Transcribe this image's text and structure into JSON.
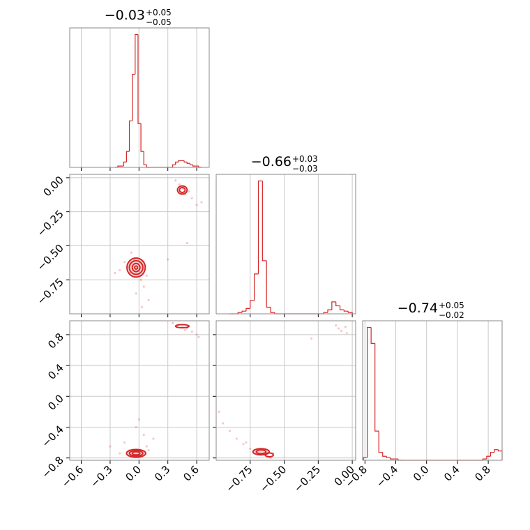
{
  "chart_data": [
    {
      "type": "hist",
      "title": "−0.03",
      "title_upper": "+0.05",
      "title_lower": "−0.05",
      "color": "#d62728",
      "grid": true,
      "bins": [
        -0.25,
        -0.22,
        -0.19,
        -0.16,
        -0.13,
        -0.1,
        -0.07,
        -0.04,
        -0.01,
        0.02,
        0.05,
        0.08,
        0.11,
        0.14,
        0.17,
        0.2,
        0.23,
        0.26,
        0.29,
        0.32,
        0.35,
        0.38,
        0.41,
        0.44,
        0.47,
        0.5,
        0.53,
        0.56,
        0.59,
        0.62,
        0.65
      ],
      "counts": [
        0,
        1,
        1,
        4,
        12,
        35,
        70,
        100,
        33,
        12,
        2,
        0,
        0,
        0,
        0,
        0,
        0,
        0,
        0,
        0,
        2,
        4,
        5,
        5,
        4,
        3,
        2,
        1,
        1,
        0
      ],
      "xlim": [
        -0.72,
        0.73
      ],
      "xticks": [
        -0.6,
        -0.3,
        0,
        0.3,
        0.6
      ]
    },
    {
      "type": "hist",
      "title": "−0.66",
      "title_upper": "+0.03",
      "title_lower": "−0.03",
      "color": "#d62728",
      "grid": true,
      "bins": [
        -0.9,
        -0.87,
        -0.84,
        -0.81,
        -0.78,
        -0.75,
        -0.72,
        -0.69,
        -0.66,
        -0.63,
        -0.6,
        -0.57,
        -0.54,
        -0.51,
        -0.48,
        -0.45,
        -0.42,
        -0.39,
        -0.36,
        -0.33,
        -0.3,
        -0.27,
        -0.24,
        -0.21,
        -0.18,
        -0.15,
        -0.12,
        -0.09,
        -0.06,
        -0.03,
        0.0
      ],
      "counts": [
        0,
        0,
        1,
        2,
        4,
        10,
        30,
        100,
        40,
        5,
        1,
        0,
        0,
        0,
        0,
        0,
        0,
        0,
        0,
        0,
        0,
        0,
        0,
        1,
        3,
        9,
        6,
        3,
        2,
        1
      ],
      "xlim": [
        -1.0,
        0.025
      ],
      "xticks": [
        -0.75,
        -0.5,
        -0.25,
        0
      ]
    },
    {
      "type": "hist",
      "title": "−0.74",
      "title_upper": "+0.05",
      "title_lower": "−0.02",
      "color": "#d62728",
      "grid": true,
      "bins": [
        -0.82,
        -0.77,
        -0.72,
        -0.67,
        -0.62,
        -0.57,
        -0.52,
        -0.47,
        -0.42,
        -0.37,
        -0.32,
        -0.27,
        -0.22,
        -0.17,
        -0.12,
        -0.07,
        -0.02,
        0.03,
        0.08,
        0.13,
        0.18,
        0.23,
        0.28,
        0.33,
        0.38,
        0.43,
        0.48,
        0.53,
        0.58,
        0.63,
        0.68,
        0.73,
        0.78,
        0.83,
        0.88,
        0.93,
        0.98
      ],
      "counts": [
        2,
        100,
        88,
        22,
        6,
        3,
        2,
        1,
        1,
        0,
        0,
        0,
        0,
        0,
        0,
        0,
        0,
        0,
        0,
        0,
        0,
        0,
        0,
        0,
        0,
        0,
        0,
        0,
        0,
        0,
        0,
        1,
        3,
        6,
        8,
        7
      ],
      "xlim": [
        -0.83,
        0.98
      ],
      "xticks": [
        {
          "value": -0.8,
          "label": "−0.8"
        },
        {
          "value": -0.4,
          "label": "−0.4"
        },
        {
          "value": 0,
          "label": "0.0"
        },
        0.4,
        0.8
      ]
    },
    {
      "type": "scatter",
      "color": "#d62728",
      "grid": true,
      "x": [
        -0.05,
        -0.1,
        0.02,
        -0.15,
        0.05,
        -0.2,
        0.08,
        -0.03,
        -0.08,
        0.1,
        -0.25,
        0.03,
        0.42,
        0.48,
        0.52,
        0.55,
        0.6,
        0.38,
        0.46,
        0.5,
        0.65,
        0.3
      ],
      "y": [
        -0.6,
        -0.7,
        -0.75,
        -0.62,
        -0.8,
        -0.68,
        -0.72,
        -0.85,
        -0.55,
        -0.9,
        -0.7,
        -0.95,
        -0.05,
        -0.12,
        -0.1,
        -0.15,
        -0.2,
        -0.02,
        -0.08,
        -0.48,
        -0.18,
        -0.6
      ],
      "contours": [
        {
          "x": -0.03,
          "y": -0.66,
          "rx": 0.095,
          "ry": 0.07
        },
        {
          "x": -0.03,
          "y": -0.66,
          "rx": 0.07,
          "ry": 0.05
        },
        {
          "x": -0.03,
          "y": -0.66,
          "rx": 0.04,
          "ry": 0.03
        },
        {
          "x": -0.03,
          "y": -0.66,
          "rx": 0.015,
          "ry": 0.012
        },
        {
          "x": 0.45,
          "y": -0.09,
          "rx": 0.05,
          "ry": 0.03
        },
        {
          "x": 0.45,
          "y": -0.09,
          "rx": 0.03,
          "ry": 0.018
        }
      ],
      "xlim": [
        -0.72,
        0.73
      ],
      "xticks": [
        -0.6,
        -0.3,
        0,
        0.3,
        0.6
      ],
      "ylim": [
        -1.0,
        0.025
      ],
      "yticks": [
        {
          "value": -0.75,
          "label": "−0.75"
        },
        {
          "value": -0.5,
          "label": "−0.50"
        },
        {
          "value": -0.25,
          "label": "−0.25"
        },
        {
          "value": 0,
          "label": "0.00"
        }
      ]
    },
    {
      "type": "scatter",
      "color": "#d62728",
      "grid": true,
      "x": [
        -0.05,
        -0.1,
        0.02,
        -0.15,
        0.05,
        -0.2,
        0.08,
        -0.03,
        0.1,
        -0.3,
        0.0,
        0.15,
        0.4,
        0.45,
        0.5,
        0.55,
        0.6,
        0.62,
        0.35,
        0.48
      ],
      "y": [
        -0.72,
        -0.7,
        -0.78,
        -0.6,
        -0.5,
        -0.74,
        -0.65,
        -0.4,
        -0.7,
        -0.65,
        -0.3,
        -0.55,
        0.93,
        0.9,
        0.88,
        0.84,
        0.8,
        0.77,
        0.95,
        0.86
      ],
      "contours": [
        {
          "x": -0.03,
          "y": -0.74,
          "rx": 0.1,
          "ry": 0.05
        },
        {
          "x": -0.03,
          "y": -0.74,
          "rx": 0.07,
          "ry": 0.035
        },
        {
          "x": -0.03,
          "y": -0.74,
          "rx": 0.04,
          "ry": 0.02
        },
        {
          "x": 0.45,
          "y": 0.91,
          "rx": 0.07,
          "ry": 0.02
        }
      ],
      "xlim": [
        -0.72,
        0.73
      ],
      "xticks": [
        {
          "value": -0.6,
          "label": "−0.6"
        },
        {
          "value": -0.3,
          "label": "−0.3"
        },
        {
          "value": 0,
          "label": "0.0"
        },
        0.3,
        0.6
      ],
      "ylim": [
        -0.83,
        0.98
      ],
      "yticks": [
        {
          "value": -0.8,
          "label": "−0.8"
        },
        {
          "value": -0.4,
          "label": "−0.4"
        },
        {
          "value": 0,
          "label": "0.0"
        },
        0.4,
        0.8
      ]
    },
    {
      "type": "scatter",
      "color": "#d62728",
      "grid": true,
      "x": [
        -0.7,
        -0.65,
        -0.62,
        -0.75,
        -0.8,
        -0.85,
        -0.9,
        -0.95,
        -0.72,
        -0.6,
        -0.58,
        -0.68,
        -0.78,
        -0.1,
        -0.05,
        -0.08,
        -0.12,
        -0.04,
        -0.3,
        -0.98
      ],
      "y": [
        -0.72,
        -0.75,
        -0.78,
        -0.68,
        -0.62,
        -0.55,
        -0.45,
        -0.35,
        -0.7,
        -0.8,
        -0.74,
        -0.76,
        -0.6,
        0.88,
        0.9,
        0.85,
        0.92,
        0.82,
        0.75,
        -0.2
      ],
      "contours": [
        {
          "x": -0.67,
          "y": -0.72,
          "rx": 0.06,
          "ry": 0.04
        },
        {
          "x": -0.67,
          "y": -0.72,
          "rx": 0.035,
          "ry": 0.025
        },
        {
          "x": -0.61,
          "y": -0.76,
          "rx": 0.03,
          "ry": 0.025
        }
      ],
      "xlim": [
        -1.0,
        0.025
      ],
      "xticks": [
        {
          "value": -0.75,
          "label": "−0.75"
        },
        {
          "value": -0.5,
          "label": "−0.50"
        },
        {
          "value": -0.25,
          "label": "−0.25"
        },
        {
          "value": 0,
          "label": "0.00"
        }
      ],
      "ylim": [
        -0.83,
        0.98
      ],
      "yticks": [
        -0.8,
        -0.4,
        0,
        0.4,
        0.8
      ]
    }
  ]
}
